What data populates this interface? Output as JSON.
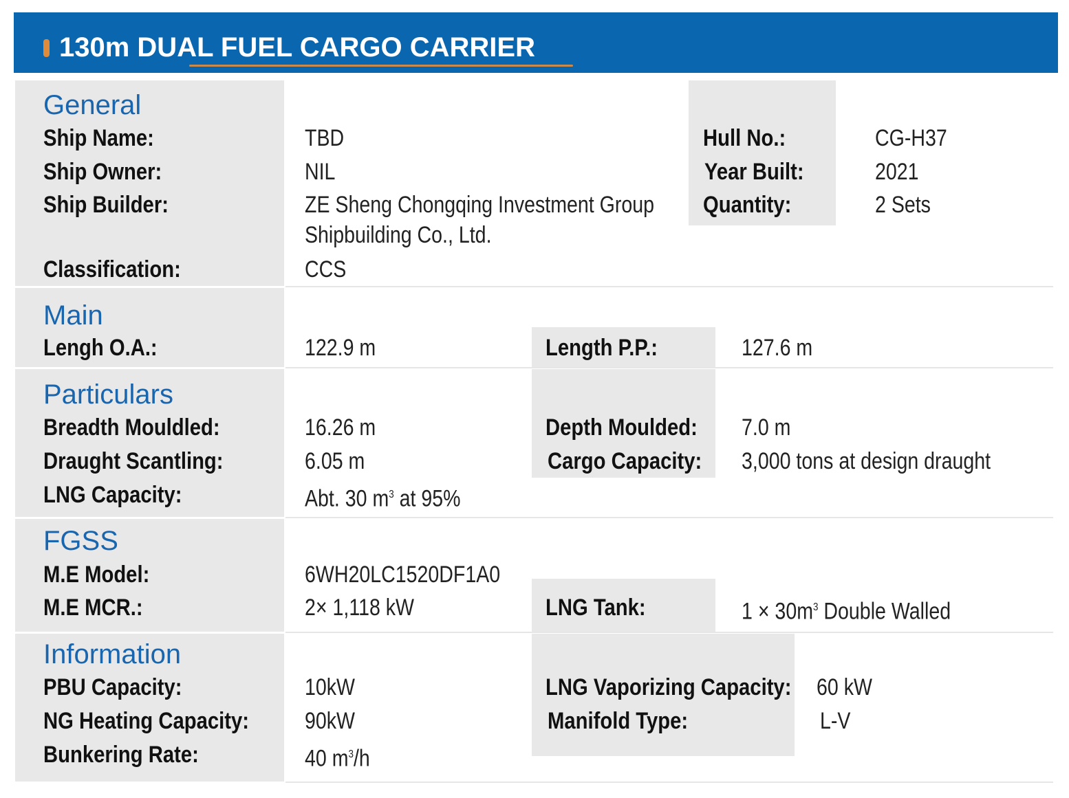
{
  "title": "130m DUAL FUEL CARGO CARRIER",
  "colors": {
    "header_bg": "#0a66ae",
    "accent": "#e08b3a",
    "section_title": "#1a66ae",
    "label_bg": "#e8e8e8"
  },
  "general": {
    "heading": "General",
    "ship_name": {
      "label": "Ship Name:",
      "value": "TBD"
    },
    "ship_owner": {
      "label": "Ship Owner:",
      "value": "NIL"
    },
    "ship_builder": {
      "label": "Ship Builder:",
      "value_line1": "ZE Sheng Chongqing Investment Group",
      "value_line2": "Shipbuilding Co., Ltd."
    },
    "classification": {
      "label": "Classification:",
      "value": "CCS"
    },
    "hull_no": {
      "label": "Hull No.:",
      "value": "CG-H37"
    },
    "year_built": {
      "label": "Year Built:",
      "value": "2021"
    },
    "quantity": {
      "label": "Quantity:",
      "value": "2 Sets"
    }
  },
  "main": {
    "heading": "Main",
    "length_oa": {
      "label": "Lengh O.A.:",
      "value": "122.9 m"
    },
    "length_pp": {
      "label": "Length P.P.:",
      "value": "127.6 m"
    }
  },
  "particulars": {
    "heading": "Particulars",
    "breadth": {
      "label": "Breadth Mouldled:",
      "value": "16.26 m"
    },
    "draught": {
      "label": "Draught Scantling:",
      "value": "6.05 m"
    },
    "lng_capacity": {
      "label": "LNG Capacity:",
      "value_pre": "Abt. 30 m",
      "value_sup": "3",
      "value_post": " at 95%"
    },
    "depth": {
      "label": "Depth Moulded:",
      "value": "7.0 m"
    },
    "cargo_capacity": {
      "label": "Cargo Capacity:",
      "value": "3,000 tons at design draught"
    }
  },
  "fgss": {
    "heading": "FGSS",
    "me_model": {
      "label": "M.E Model:",
      "value": "6WH20LC1520DF1A0"
    },
    "me_mcr": {
      "label": "M.E MCR.:",
      "value": "2× 1,118 kW"
    },
    "lng_tank": {
      "label": "LNG Tank:",
      "value_pre": "1 × 30m",
      "value_sup": "3",
      "value_post": " Double Walled"
    }
  },
  "information": {
    "heading": "Information",
    "pbu": {
      "label": "PBU Capacity:",
      "value": "10kW"
    },
    "ng_heating": {
      "label": "NG Heating Capacity:",
      "value": "90kW"
    },
    "bunkering": {
      "label": "Bunkering Rate:",
      "value_pre": "40 m",
      "value_sup": "3",
      "value_post": "/h"
    },
    "vaporizing": {
      "label": "LNG Vaporizing Capacity:",
      "value": "60 kW"
    },
    "manifold": {
      "label": "Manifold Type:",
      "value": "L-V"
    }
  }
}
